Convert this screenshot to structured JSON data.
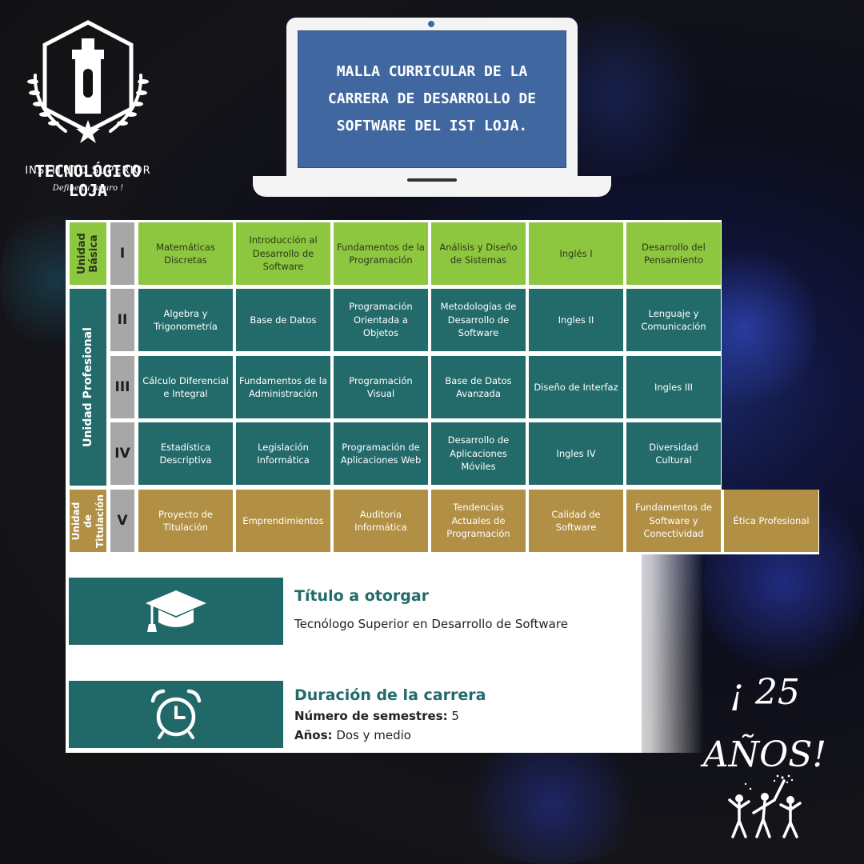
{
  "logo": {
    "line1": "INSTITUTO SUPERIOR",
    "line2": "TECNOLÓGICO LOJA",
    "slogan": "Define tu futuro !"
  },
  "laptop": {
    "title": "MALLA CURRICULAR DE LA CARRERA DE DESARROLLO DE SOFTWARE DEL IST LOJA."
  },
  "curriculum": {
    "units": [
      {
        "label": "Unidad Básica"
      },
      {
        "label": "Unidad Profesional"
      },
      {
        "label": "Unidad de Titulación"
      }
    ],
    "semesters": [
      "I",
      "II",
      "III",
      "IV",
      "V"
    ],
    "rows": [
      [
        "Matemáticas Discretas",
        "Introducción al Desarrollo de Software",
        "Fundamentos de la Programación",
        "Análisis y Diseño de Sistemas",
        "Inglés I",
        "Desarrollo del Pensamiento"
      ],
      [
        "Algebra y Trigonometría",
        "Base de Datos",
        "Programación Orientada a Objetos",
        "Metodologías de Desarrollo de Software",
        "Ingles II",
        "Lenguaje y Comunicación"
      ],
      [
        "Cálculo Diferencial e Integral",
        "Fundamentos de la Administración",
        "Programación Visual",
        "Base de Datos Avanzada",
        "Diseño de Interfaz",
        "Ingles III"
      ],
      [
        "Estadística Descriptiva",
        "Legislación Informática",
        "Programación de Aplicaciones Web",
        "Desarrollo de Aplicaciones Móviles",
        "Ingles IV",
        "Diversidad Cultural"
      ],
      [
        "Proyecto de Titulación",
        "Emprendimientos",
        "Auditoria Informática",
        "Tendencias Actuales de Programación",
        "Calidad de Software",
        "Fundamentos de Software y Conectividad",
        "Ética Profesional"
      ]
    ],
    "colors": {
      "basic": "#8dc63f",
      "professional": "#236a6a",
      "titulacion": "#b18f44",
      "semester": "#a7a7a7"
    }
  },
  "info": {
    "title_heading": "Título a otorgar",
    "title_value": "Tecnólogo Superior en Desarrollo de Software",
    "duration_heading": "Duración de la carrera",
    "semesters_label": "Número de semestres:",
    "semesters_value": "5",
    "years_label": "Años:",
    "years_value": "Dos y medio",
    "icons": [
      "graduation-cap-icon",
      "alarm-clock-icon"
    ]
  },
  "anniversary": {
    "line1": "¡ 25",
    "line2": "AÑOS!"
  }
}
